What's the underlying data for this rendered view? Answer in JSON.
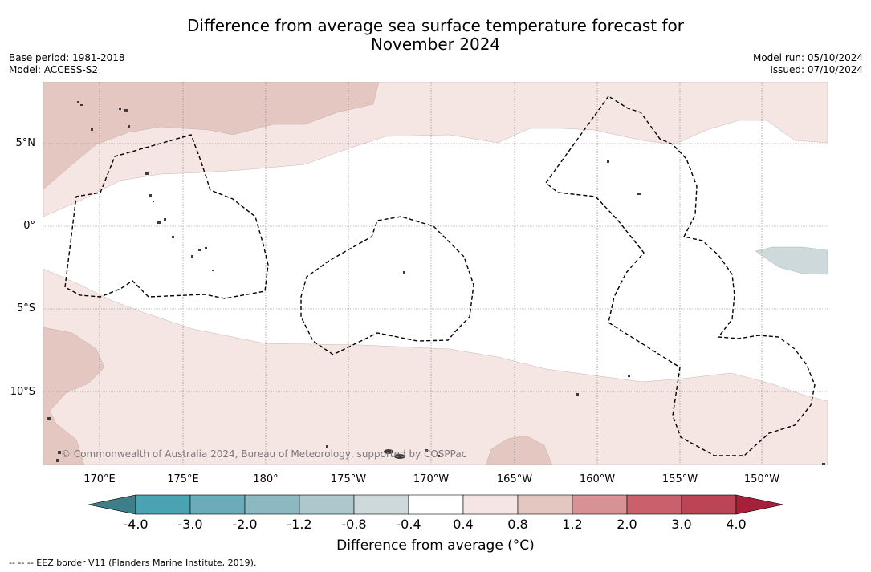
{
  "header": {
    "title_line1": "Difference from average sea surface temperature forecast for",
    "title_line2": "November 2024",
    "base_period": "Base period: 1981-2018",
    "model": "Model: ACCESS-S2",
    "model_run": "Model run: 05/10/2024",
    "issued": "Issued: 07/10/2024"
  },
  "map": {
    "lat_labels": [
      "5°N",
      "0°",
      "5°S",
      "10°S"
    ],
    "lon_labels": [
      "170°E",
      "175°E",
      "180°",
      "175°W",
      "170°W",
      "165°W",
      "160°W",
      "155°W",
      "150°W"
    ],
    "copyright": "© Commonwealth of Australia 2024, Bureau of Meteorology, supported by COSPPac",
    "colors": {
      "anomaly_0_4_to_0_8": "#f5e6e4",
      "anomaly_0_8_to_1_2": "#e5c7c2",
      "anomaly_minus_0_8_to_minus_0_4": "#cdd9da",
      "eez_border": "#000000",
      "land": "#3b3b3b"
    }
  },
  "colorbar": {
    "ticks": [
      "-4.0",
      "-3.0",
      "-2.0",
      "-1.2",
      "-0.8",
      "-0.4",
      "0.4",
      "0.8",
      "1.2",
      "2.0",
      "3.0",
      "4.0"
    ],
    "colors": [
      "#3e7e88",
      "#4aa3b2",
      "#6aacb9",
      "#8cb8c1",
      "#adc8cc",
      "#cdd9da",
      "#ffffff",
      "#f5e6e4",
      "#e5c7c2",
      "#d89195",
      "#c9606b",
      "#bb4555",
      "#a7203a"
    ],
    "label": "Difference from average (°C)"
  },
  "footer": {
    "legend_text": "-- -- -- EEZ border V11 (Flanders Marine Institute, 2019)."
  }
}
